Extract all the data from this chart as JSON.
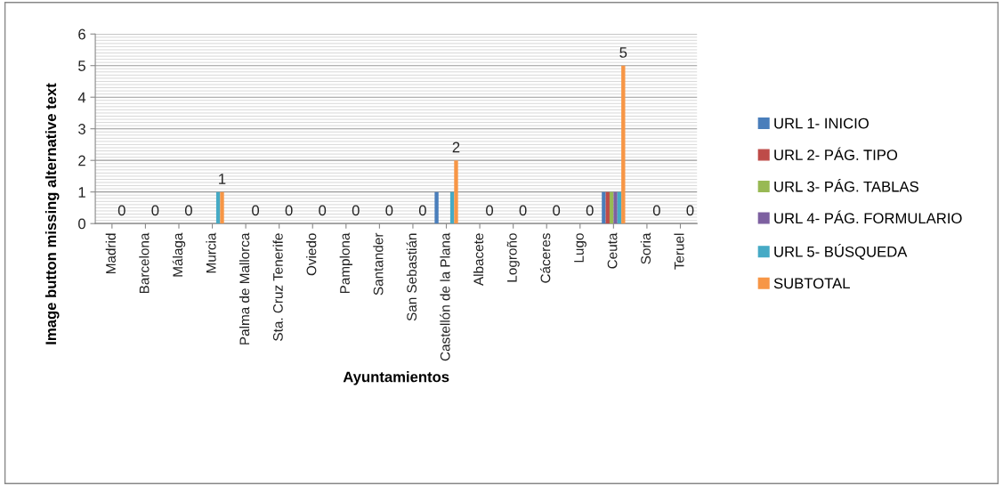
{
  "chart_data": {
    "type": "bar",
    "xlabel": "Ayuntamientos",
    "ylabel": "Image button missing alternative text",
    "categories": [
      "Madrid",
      "Barcelona",
      "Málaga",
      "Murcia",
      "Palma de Mallorca",
      "Sta. Cruz Tenerife",
      "Oviedo",
      "Pamplona",
      "Santander",
      "San Sebastián",
      "Castellón de la Plana",
      "Albacete",
      "Logroño",
      "Cáceres",
      "Lugo",
      "Ceuta",
      "Soria",
      "Teruel"
    ],
    "series": [
      {
        "name": "URL 1- INICIO",
        "color": "#4a7ebb",
        "values": [
          0,
          0,
          0,
          0,
          0,
          0,
          0,
          0,
          0,
          0,
          1,
          0,
          0,
          0,
          0,
          1,
          0,
          0
        ]
      },
      {
        "name": "URL 2- PÁG. TIPO",
        "color": "#be4b48",
        "values": [
          0,
          0,
          0,
          0,
          0,
          0,
          0,
          0,
          0,
          0,
          0,
          0,
          0,
          0,
          0,
          1,
          0,
          0
        ]
      },
      {
        "name": "URL 3- PÁG. TABLAS",
        "color": "#98b954",
        "values": [
          0,
          0,
          0,
          0,
          0,
          0,
          0,
          0,
          0,
          0,
          0,
          0,
          0,
          0,
          0,
          1,
          0,
          0
        ]
      },
      {
        "name": "URL 4- PÁG. FORMULARIO",
        "color": "#7d60a0",
        "values": [
          0,
          0,
          0,
          0,
          0,
          0,
          0,
          0,
          0,
          0,
          0,
          0,
          0,
          0,
          0,
          1,
          0,
          0
        ]
      },
      {
        "name": "URL 5- BÚSQUEDA",
        "color": "#46aac5",
        "values": [
          0,
          0,
          0,
          1,
          0,
          0,
          0,
          0,
          0,
          0,
          1,
          0,
          0,
          0,
          0,
          1,
          0,
          0
        ]
      },
      {
        "name": "SUBTOTAL",
        "color": "#f79646",
        "values": [
          0,
          0,
          0,
          1,
          0,
          0,
          0,
          0,
          0,
          0,
          2,
          0,
          0,
          0,
          0,
          5,
          0,
          0
        ],
        "value_labels": [
          "0",
          "0",
          "0",
          "1",
          "0",
          "0",
          "0",
          "0",
          "0",
          "0",
          "2",
          "0",
          "0",
          "0",
          "0",
          "5",
          "0",
          "0"
        ]
      }
    ],
    "ylim": [
      0,
      6
    ],
    "yticks": [
      0,
      1,
      2,
      3,
      4,
      5,
      6
    ],
    "grid": "y",
    "legend": "right"
  }
}
